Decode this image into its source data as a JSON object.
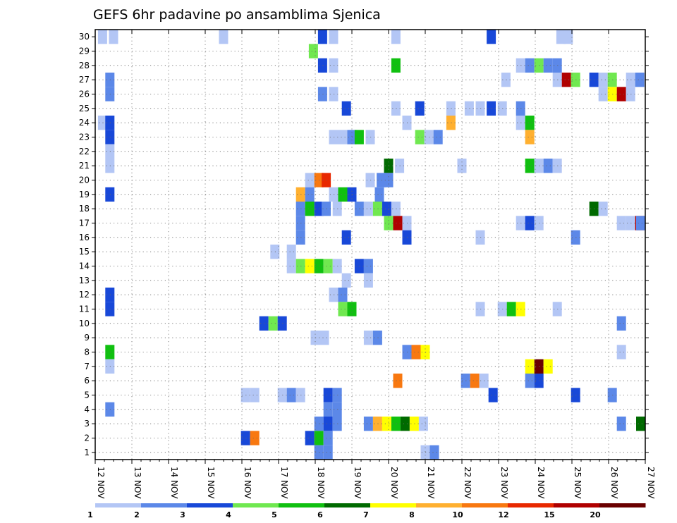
{
  "chart_data": {
    "type": "heatmap",
    "title": "GEFS 6hr padavine po ansamblima Sjenica",
    "x_tick_labels": [
      "12 NOV",
      "13 NOV",
      "14 NOV",
      "15 NOV",
      "16 NOV",
      "17 NOV",
      "18 NOV",
      "19 NOV",
      "20 NOV",
      "21 NOV",
      "22 NOV",
      "23 NOV",
      "24 NOV",
      "25 NOV",
      "26 NOV",
      "27 NOV"
    ],
    "y_tick_labels": [
      "1",
      "2",
      "3",
      "4",
      "5",
      "6",
      "7",
      "8",
      "9",
      "10",
      "11",
      "12",
      "13",
      "14",
      "15",
      "16",
      "17",
      "18",
      "19",
      "20",
      "21",
      "22",
      "23",
      "24",
      "25",
      "26",
      "27",
      "28",
      "29",
      "30"
    ],
    "x_range": [
      0,
      15
    ],
    "y_range": [
      0,
      30
    ],
    "steps_per_day": 4,
    "grid": true,
    "legend_placement": "bottom",
    "legend": {
      "labels": [
        "1",
        "2",
        "3",
        "4",
        "5",
        "6",
        "7",
        "8",
        "10",
        "12",
        "15",
        "20"
      ],
      "colors": [
        "#b3c6f5",
        "#5c88e8",
        "#1848d8",
        "#70e850",
        "#10c010",
        "#006a00",
        "#ffff00",
        "#ffb030",
        "#f87810",
        "#e82800",
        "#b00000",
        "#6a0000"
      ]
    },
    "cells": [
      [
        30,
        0.2,
        1
      ],
      [
        30,
        0.5,
        1
      ],
      [
        30,
        3.5,
        1
      ],
      [
        30,
        6.2,
        3
      ],
      [
        30,
        6.5,
        1
      ],
      [
        30,
        8.2,
        1
      ],
      [
        30,
        10.8,
        3
      ],
      [
        30,
        12.7,
        1
      ],
      [
        30,
        12.9,
        1
      ],
      [
        29,
        5.95,
        4
      ],
      [
        28,
        6.2,
        3
      ],
      [
        28,
        6.5,
        1
      ],
      [
        28,
        8.2,
        5
      ],
      [
        28,
        11.6,
        1
      ],
      [
        28,
        11.85,
        2
      ],
      [
        28,
        12.1,
        4
      ],
      [
        28,
        12.35,
        2
      ],
      [
        28,
        12.6,
        2
      ],
      [
        27,
        0.4,
        2
      ],
      [
        27,
        11.2,
        1
      ],
      [
        27,
        12.6,
        1
      ],
      [
        27,
        12.85,
        11
      ],
      [
        27,
        13.1,
        4
      ],
      [
        27,
        13.6,
        3
      ],
      [
        27,
        13.85,
        1
      ],
      [
        27,
        14.1,
        4
      ],
      [
        27,
        14.6,
        1
      ],
      [
        27,
        14.85,
        2
      ],
      [
        26,
        0.4,
        2
      ],
      [
        26,
        6.2,
        2
      ],
      [
        26,
        6.5,
        1
      ],
      [
        26,
        13.85,
        1
      ],
      [
        26,
        14.1,
        7
      ],
      [
        26,
        14.35,
        11
      ],
      [
        26,
        14.6,
        1
      ],
      [
        25,
        6.85,
        3
      ],
      [
        25,
        8.2,
        1
      ],
      [
        25,
        8.85,
        3
      ],
      [
        25,
        9.7,
        1
      ],
      [
        25,
        10.2,
        1
      ],
      [
        25,
        10.5,
        1
      ],
      [
        25,
        10.8,
        3
      ],
      [
        25,
        11.1,
        1
      ],
      [
        25,
        11.6,
        2
      ],
      [
        24,
        0.2,
        1
      ],
      [
        24,
        0.4,
        3
      ],
      [
        24,
        8.5,
        1
      ],
      [
        24,
        9.7,
        8
      ],
      [
        24,
        11.6,
        1
      ],
      [
        24,
        11.85,
        5
      ],
      [
        23,
        0.4,
        3
      ],
      [
        23,
        6.5,
        1
      ],
      [
        23,
        6.75,
        1
      ],
      [
        23,
        7.0,
        2
      ],
      [
        23,
        7.2,
        5
      ],
      [
        23,
        7.5,
        1
      ],
      [
        23,
        8.85,
        4
      ],
      [
        23,
        9.1,
        1
      ],
      [
        23,
        9.35,
        2
      ],
      [
        23,
        11.85,
        8
      ],
      [
        22,
        0.4,
        1
      ],
      [
        21,
        0.4,
        1
      ],
      [
        21,
        8.0,
        6
      ],
      [
        21,
        8.3,
        1
      ],
      [
        21,
        10.0,
        1
      ],
      [
        21,
        11.85,
        5
      ],
      [
        21,
        12.1,
        1
      ],
      [
        21,
        12.35,
        2
      ],
      [
        21,
        12.6,
        1
      ],
      [
        20,
        5.85,
        1
      ],
      [
        20,
        6.1,
        9
      ],
      [
        20,
        6.3,
        10
      ],
      [
        20,
        7.5,
        1
      ],
      [
        20,
        7.8,
        2
      ],
      [
        20,
        8.0,
        2
      ],
      [
        19,
        0.4,
        3
      ],
      [
        19,
        5.6,
        8
      ],
      [
        19,
        5.85,
        2
      ],
      [
        19,
        6.5,
        1
      ],
      [
        19,
        6.75,
        5
      ],
      [
        19,
        7.0,
        3
      ],
      [
        19,
        7.75,
        2
      ],
      [
        18,
        5.6,
        2
      ],
      [
        18,
        5.85,
        5
      ],
      [
        18,
        6.1,
        3
      ],
      [
        18,
        6.3,
        2
      ],
      [
        18,
        6.6,
        1
      ],
      [
        18,
        7.2,
        2
      ],
      [
        18,
        7.45,
        1
      ],
      [
        18,
        7.7,
        4
      ],
      [
        18,
        7.95,
        3
      ],
      [
        18,
        8.2,
        1
      ],
      [
        18,
        13.6,
        6
      ],
      [
        18,
        13.85,
        1
      ],
      [
        17,
        5.6,
        2
      ],
      [
        17,
        8.0,
        4
      ],
      [
        17,
        8.25,
        11
      ],
      [
        17,
        8.5,
        1
      ],
      [
        17,
        11.6,
        1
      ],
      [
        17,
        11.85,
        3
      ],
      [
        17,
        12.1,
        1
      ],
      [
        17,
        14.35,
        1
      ],
      [
        17,
        14.6,
        1
      ],
      [
        17,
        14.85,
        11
      ],
      [
        17,
        15.0,
        2
      ],
      [
        16,
        5.6,
        2
      ],
      [
        16,
        6.85,
        3
      ],
      [
        16,
        8.5,
        3
      ],
      [
        16,
        10.5,
        1
      ],
      [
        16,
        13.1,
        2
      ],
      [
        15,
        4.9,
        1
      ],
      [
        15,
        5.35,
        1
      ],
      [
        14,
        5.35,
        1
      ],
      [
        14,
        5.6,
        4
      ],
      [
        14,
        5.85,
        7
      ],
      [
        14,
        6.1,
        5
      ],
      [
        14,
        6.35,
        4
      ],
      [
        14,
        6.6,
        1
      ],
      [
        14,
        7.2,
        3
      ],
      [
        14,
        7.45,
        2
      ],
      [
        13,
        6.85,
        1
      ],
      [
        13,
        7.45,
        1
      ],
      [
        12,
        0.4,
        3
      ],
      [
        12,
        6.5,
        1
      ],
      [
        12,
        6.75,
        2
      ],
      [
        11,
        0.4,
        3
      ],
      [
        11,
        6.75,
        4
      ],
      [
        11,
        7.0,
        5
      ],
      [
        11,
        10.5,
        1
      ],
      [
        11,
        11.1,
        1
      ],
      [
        11,
        11.35,
        5
      ],
      [
        11,
        11.6,
        7
      ],
      [
        11,
        12.6,
        1
      ],
      [
        10,
        4.6,
        3
      ],
      [
        10,
        4.85,
        4
      ],
      [
        10,
        5.1,
        3
      ],
      [
        10,
        14.35,
        2
      ],
      [
        9,
        6.0,
        1
      ],
      [
        9,
        6.25,
        1
      ],
      [
        9,
        7.45,
        1
      ],
      [
        9,
        7.7,
        2
      ],
      [
        8,
        0.4,
        5
      ],
      [
        8,
        8.5,
        2
      ],
      [
        8,
        8.75,
        9
      ],
      [
        8,
        9.0,
        7
      ],
      [
        8,
        14.35,
        1
      ],
      [
        7,
        0.4,
        1
      ],
      [
        7,
        11.85,
        7
      ],
      [
        7,
        12.1,
        12
      ],
      [
        7,
        12.35,
        7
      ],
      [
        6,
        8.25,
        9
      ],
      [
        6,
        10.1,
        2
      ],
      [
        6,
        10.35,
        9
      ],
      [
        6,
        10.6,
        1
      ],
      [
        6,
        11.85,
        2
      ],
      [
        6,
        12.1,
        3
      ],
      [
        5,
        4.1,
        1
      ],
      [
        5,
        4.35,
        1
      ],
      [
        5,
        5.1,
        1
      ],
      [
        5,
        5.35,
        2
      ],
      [
        5,
        5.6,
        1
      ],
      [
        5,
        6.35,
        3
      ],
      [
        5,
        6.6,
        2
      ],
      [
        5,
        10.85,
        3
      ],
      [
        5,
        13.1,
        3
      ],
      [
        5,
        14.1,
        2
      ],
      [
        4,
        0.4,
        2
      ],
      [
        4,
        6.35,
        2
      ],
      [
        4,
        6.6,
        2
      ],
      [
        3,
        6.1,
        2
      ],
      [
        3,
        6.35,
        3
      ],
      [
        3,
        6.6,
        2
      ],
      [
        3,
        7.45,
        2
      ],
      [
        3,
        7.7,
        8
      ],
      [
        3,
        7.95,
        7
      ],
      [
        3,
        8.2,
        5
      ],
      [
        3,
        8.45,
        6
      ],
      [
        3,
        8.7,
        7
      ],
      [
        3,
        8.95,
        1
      ],
      [
        3,
        14.35,
        2
      ],
      [
        3,
        15.0,
        6
      ],
      [
        2,
        4.1,
        3
      ],
      [
        2,
        4.35,
        9
      ],
      [
        2,
        5.85,
        3
      ],
      [
        2,
        6.1,
        5
      ],
      [
        2,
        6.35,
        2
      ],
      [
        1,
        6.1,
        2
      ],
      [
        1,
        6.35,
        2
      ],
      [
        1,
        9.0,
        1
      ],
      [
        1,
        9.25,
        2
      ]
    ]
  }
}
